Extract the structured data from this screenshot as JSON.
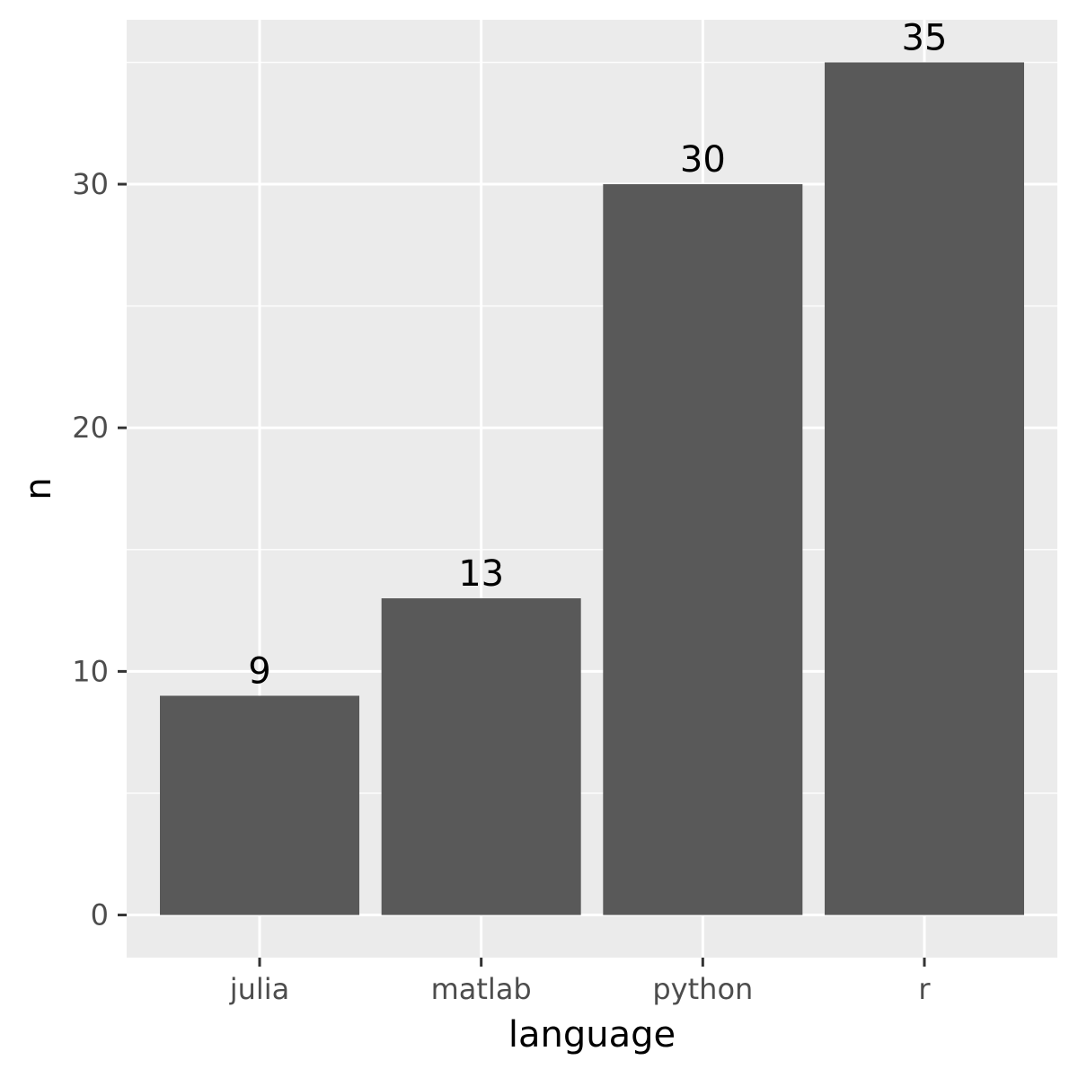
{
  "colors": {
    "panel_background": "#ebebeb",
    "grid_major": "#ffffff",
    "grid_minor": "#f5f5f5",
    "bar_fill": "#595959",
    "tick": "#333333"
  },
  "chart_data": {
    "type": "bar",
    "title": "",
    "xlabel": "language",
    "ylabel": "n",
    "categories": [
      "julia",
      "matlab",
      "python",
      "r"
    ],
    "values": [
      9,
      13,
      30,
      35
    ],
    "data_labels": [
      "9",
      "13",
      "30",
      "35"
    ],
    "yticks": [
      0,
      10,
      20,
      30
    ],
    "ytick_labels": [
      "0",
      "10",
      "20",
      "30"
    ],
    "ylim": [
      -1.75,
      36.75
    ],
    "grid": true,
    "legend": "none"
  }
}
